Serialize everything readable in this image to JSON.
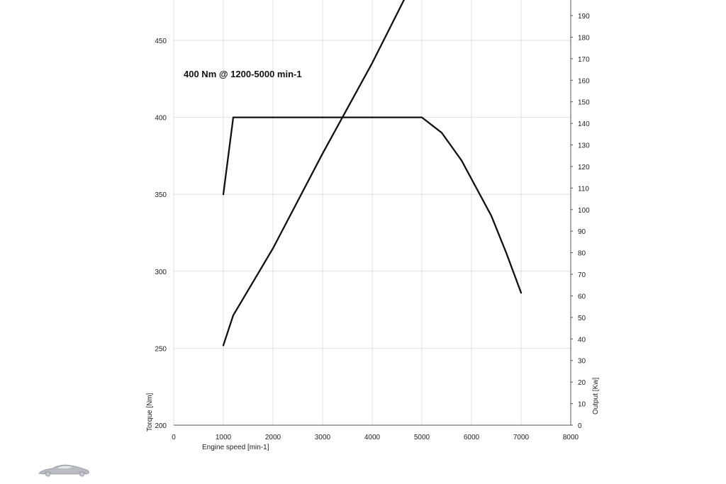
{
  "chart_data": {
    "type": "line",
    "annotation": "400 Nm @ 1200-5000 min-1",
    "xlabel": "Engine speed [min-1]",
    "ylabel_left": "Torque [Nm]",
    "ylabel_right": "Output [Kw]",
    "xlim": [
      0,
      8000
    ],
    "ylim_left": [
      200,
      475
    ],
    "ylim_right": [
      0,
      200
    ],
    "x_ticks": [
      0,
      1000,
      2000,
      3000,
      4000,
      5000,
      6000,
      7000,
      8000
    ],
    "y_left_ticks": [
      200,
      250,
      300,
      350,
      400,
      450
    ],
    "y_right_ticks": [
      0,
      10,
      20,
      30,
      40,
      50,
      60,
      70,
      80,
      90,
      100,
      110,
      120,
      130,
      140,
      150,
      160,
      170,
      180,
      190
    ],
    "grid": true,
    "series": [
      {
        "axis": "left",
        "x": [
          1000,
          1200,
          5000,
          5400,
          5800,
          6400,
          6700,
          7000
        ],
        "y": [
          350,
          400,
          400,
          390,
          372,
          336,
          312,
          286
        ]
      },
      {
        "axis": "right",
        "x": [
          1000,
          1200,
          2000,
          3000,
          4000,
          4700
        ],
        "y": [
          37,
          51,
          82,
          126,
          168,
          200
        ]
      }
    ]
  },
  "logo": {
    "icon": "car-silhouette-icon"
  }
}
